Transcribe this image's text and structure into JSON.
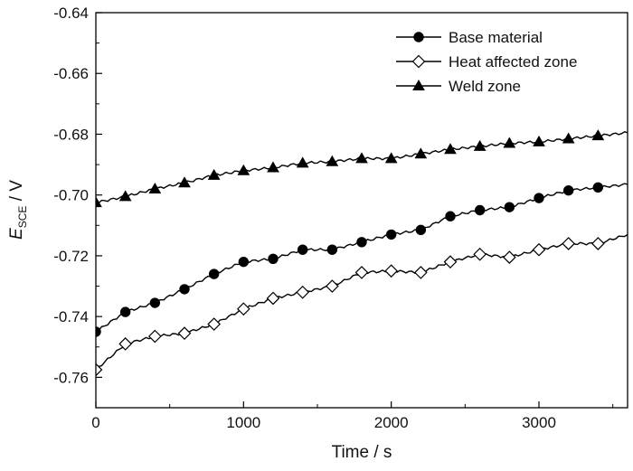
{
  "chart_data": {
    "type": "line",
    "title": "",
    "xlabel": "Time / s",
    "ylabel": {
      "main": "E",
      "sub": "SCE",
      "unit": " / V"
    },
    "xlim": [
      0,
      3600
    ],
    "ylim": [
      -0.77,
      -0.64
    ],
    "xticks": [
      0,
      1000,
      2000,
      3000
    ],
    "xtick_labels": [
      "0",
      "1000",
      "2000",
      "3000"
    ],
    "yticks": [
      -0.76,
      -0.74,
      -0.72,
      -0.7,
      -0.68,
      -0.66,
      -0.64
    ],
    "ytick_labels": [
      "-0.76",
      "-0.74",
      "-0.72",
      "-0.70",
      "-0.68",
      "-0.66",
      "-0.64"
    ],
    "grid": false,
    "legend_position": "top-right",
    "series": [
      {
        "name": "Base material",
        "marker": "filled-circle",
        "color": "#000000",
        "x": [
          0,
          200,
          400,
          600,
          800,
          1000,
          1200,
          1400,
          1600,
          1800,
          2000,
          2200,
          2400,
          2600,
          2800,
          3000,
          3200,
          3400,
          3600
        ],
        "y": [
          -0.745,
          -0.7385,
          -0.7355,
          -0.731,
          -0.726,
          -0.722,
          -0.721,
          -0.718,
          -0.718,
          -0.7155,
          -0.713,
          -0.7115,
          -0.707,
          -0.705,
          -0.704,
          -0.701,
          -0.6985,
          -0.6975,
          -0.6965
        ]
      },
      {
        "name": "Heat affected zone",
        "marker": "open-diamond",
        "color": "#000000",
        "x": [
          0,
          200,
          400,
          600,
          800,
          1000,
          1200,
          1400,
          1600,
          1800,
          2000,
          2200,
          2400,
          2600,
          2800,
          3000,
          3200,
          3400,
          3600
        ],
        "y": [
          -0.7575,
          -0.749,
          -0.7465,
          -0.7455,
          -0.7425,
          -0.7375,
          -0.734,
          -0.732,
          -0.73,
          -0.7255,
          -0.725,
          -0.7255,
          -0.722,
          -0.7195,
          -0.7205,
          -0.718,
          -0.716,
          -0.716,
          -0.713
        ]
      },
      {
        "name": "Weld zone",
        "marker": "filled-triangle",
        "color": "#000000",
        "x": [
          0,
          200,
          400,
          600,
          800,
          1000,
          1200,
          1400,
          1600,
          1800,
          2000,
          2200,
          2400,
          2600,
          2800,
          3000,
          3200,
          3400,
          3600
        ],
        "y": [
          -0.7025,
          -0.7005,
          -0.698,
          -0.696,
          -0.6935,
          -0.692,
          -0.691,
          -0.6895,
          -0.689,
          -0.688,
          -0.688,
          -0.6865,
          -0.685,
          -0.684,
          -0.683,
          -0.6825,
          -0.6815,
          -0.6805,
          -0.6795
        ]
      }
    ]
  }
}
